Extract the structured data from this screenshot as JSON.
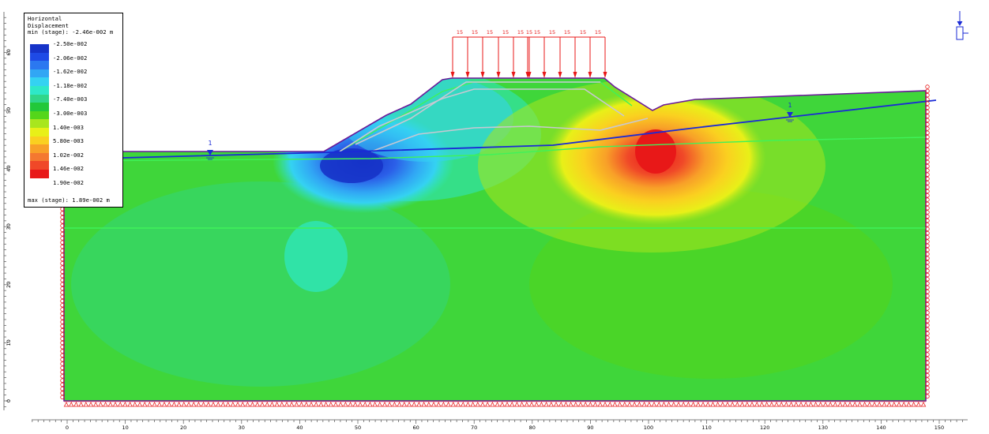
{
  "legend": {
    "title_line1": "Horizontal",
    "title_line2": "Displacement",
    "min_text": "min (stage): -2.46e-002 m",
    "max_text": "max (stage): 1.89e-002 m",
    "labels": [
      "-2.50e-002",
      "-2.06e-002",
      "-1.62e-002",
      "-1.18e-002",
      "-7.40e-003",
      "-3.00e-003",
      "1.40e-003",
      "5.80e-003",
      "1.02e-002",
      "1.46e-002",
      "1.90e-002"
    ],
    "colors": [
      "#1633c8",
      "#1e4ae6",
      "#2b78f0",
      "#31a6f4",
      "#34d2f2",
      "#2ee8c8",
      "#30d68a",
      "#22c83a",
      "#54d61a",
      "#a8e61e",
      "#e8f018",
      "#fad020",
      "#f8a028",
      "#f47830",
      "#f04828",
      "#e81818"
    ]
  },
  "x_axis_ticks": [
    "0",
    "10",
    "20",
    "30",
    "40",
    "50",
    "60",
    "70",
    "80",
    "90",
    "100",
    "110",
    "120",
    "130",
    "140",
    "150"
  ],
  "y_axis_ticks": [
    "0",
    "10",
    "20",
    "30",
    "40",
    "50",
    "60"
  ],
  "load_value": "15",
  "water_table_markers": [
    "1",
    "1"
  ],
  "colors": {
    "background": "#3fd63a",
    "outline": "#6a1a9a",
    "water_table": "#1a2ad6",
    "load": "#e81818",
    "support": "#e81818"
  }
}
